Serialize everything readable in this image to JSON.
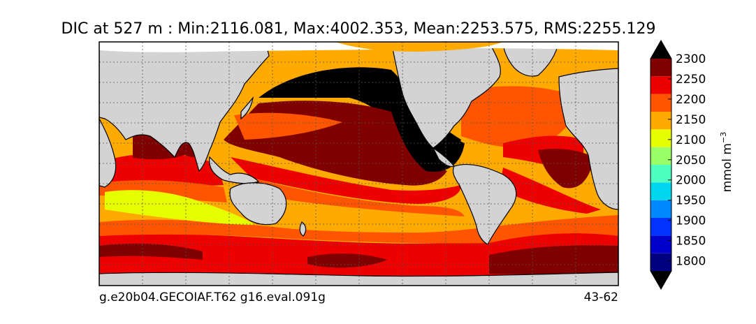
{
  "chart_data": {
    "type": "heatmap",
    "title": "DIC at 527 m : Min:2116.081, Max:4002.353, Mean:2253.575, RMS:2255.129",
    "caption_left": "g.e20b04.GECOIAF.T62 g16.eval.091g",
    "caption_right": "43-62",
    "colorbar": {
      "label": "mmol m",
      "label_superscript": "−3",
      "ticks": [
        "1800",
        "1850",
        "1900",
        "1950",
        "2000",
        "2050",
        "2100",
        "2150",
        "2200",
        "2250",
        "2300"
      ],
      "levels": [
        1775,
        1800,
        1825,
        1850,
        1875,
        1900,
        1925,
        1950,
        1975,
        2000,
        2025,
        2050,
        2075,
        2100,
        2125,
        2150,
        2175,
        2200,
        2225,
        2250,
        2275,
        2300
      ],
      "colors": [
        "#000080",
        "#0000cd",
        "#0033ff",
        "#0088ff",
        "#00d7ee",
        "#4dffc0",
        "#99ff66",
        "#e6ff00",
        "#ffaa00",
        "#ff5500",
        "#ee0000",
        "#800000"
      ],
      "extend": "both",
      "extend_low_color": "#000000",
      "extend_high_color": "#000000"
    },
    "map": {
      "projection": "equirectangular",
      "gridlines": true,
      "land_color": "#d3d3d3",
      "missing_color": "#ffffff"
    }
  }
}
